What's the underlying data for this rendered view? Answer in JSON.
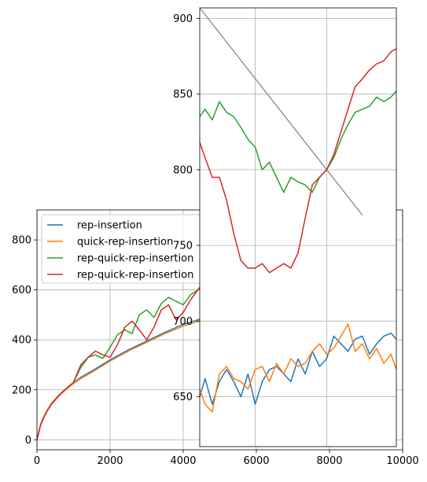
{
  "chart_data": [
    {
      "id": "main",
      "type": "line",
      "title": "",
      "xlabel": "",
      "ylabel": "",
      "xlim": [
        0,
        10000
      ],
      "ylim": [
        -40,
        920
      ],
      "xticks": [
        0,
        2000,
        4000,
        6000,
        8000,
        10000
      ],
      "xtick_labels": [
        "0",
        "2000",
        "4000",
        "6000",
        "8000",
        "10000"
      ],
      "yticks": [
        0,
        200,
        400,
        600,
        800
      ],
      "ytick_labels": [
        "0",
        "200",
        "400",
        "600",
        "800"
      ],
      "grid": true,
      "legend": "upper left",
      "series": [
        {
          "name": "rep-insertion",
          "color": "#1f77b4",
          "x": [
            0,
            100,
            200,
            300,
            400,
            600,
            800,
            1000,
            1200,
            1500,
            2000,
            2500,
            3000,
            3500,
            4000,
            4500
          ],
          "y": [
            0,
            60,
            95,
            122,
            145,
            178,
            205,
            228,
            250,
            275,
            320,
            360,
            395,
            430,
            462,
            485
          ]
        },
        {
          "name": "quick-rep-insertion",
          "color": "#ff7f0e",
          "x": [
            0,
            100,
            200,
            300,
            400,
            600,
            800,
            1000,
            1200,
            1500,
            2000,
            2500,
            3000,
            3500,
            4000,
            4500
          ],
          "y": [
            0,
            58,
            92,
            120,
            142,
            175,
            202,
            225,
            245,
            270,
            315,
            355,
            390,
            425,
            455,
            478
          ]
        },
        {
          "name": "rep-quick-rep-insertion",
          "color": "#2ca02c",
          "x": [
            0,
            100,
            200,
            300,
            400,
            600,
            800,
            1000,
            1200,
            1400,
            1600,
            1800,
            2000,
            2200,
            2400,
            2600,
            2800,
            3000,
            3200,
            3400,
            3600,
            3800,
            4000,
            4200,
            4500
          ],
          "y": [
            0,
            60,
            95,
            122,
            145,
            178,
            205,
            230,
            290,
            330,
            340,
            325,
            370,
            420,
            440,
            425,
            500,
            520,
            490,
            545,
            570,
            555,
            540,
            580,
            610
          ]
        },
        {
          "name": "rep-quick-rep-insertion",
          "color": "#d62728",
          "x": [
            0,
            100,
            200,
            300,
            400,
            600,
            800,
            1000,
            1200,
            1400,
            1600,
            1800,
            2000,
            2200,
            2400,
            2600,
            2800,
            3000,
            3200,
            3400,
            3600,
            3800,
            4000,
            4200,
            4500
          ],
          "y": [
            0,
            60,
            95,
            122,
            145,
            178,
            205,
            230,
            300,
            330,
            355,
            340,
            330,
            380,
            450,
            475,
            440,
            400,
            450,
            520,
            540,
            480,
            510,
            560,
            620
          ]
        }
      ]
    },
    {
      "id": "inset",
      "type": "line",
      "title": "",
      "xlabel": "",
      "ylabel": "",
      "xlim": [
        4450,
        9950
      ],
      "ylim": [
        617,
        907
      ],
      "xticks": [
        4000,
        6000,
        8000,
        10000
      ],
      "xtick_labels": [
        "4000",
        "6000",
        "8000",
        "10000"
      ],
      "yticks": [
        650,
        700,
        750,
        800,
        850,
        900
      ],
      "ytick_labels": [
        "650",
        "700",
        "750",
        "800",
        "850",
        "900"
      ],
      "grid": true,
      "reference_line": {
        "color": "#808080",
        "x": [
          4450,
          9000
        ],
        "y": [
          907,
          770
        ]
      },
      "series": [
        {
          "name": "rep-insertion",
          "color": "#1f77b4",
          "x": [
            4450,
            4600,
            4800,
            5000,
            5200,
            5400,
            5600,
            5800,
            6000,
            6200,
            6400,
            6600,
            6800,
            7000,
            7200,
            7400,
            7600,
            7800,
            8000,
            8200,
            8400,
            8600,
            8800,
            9000,
            9200,
            9400,
            9600,
            9800,
            9950
          ],
          "y": [
            650,
            662,
            645,
            660,
            668,
            660,
            650,
            665,
            645,
            660,
            668,
            670,
            665,
            660,
            675,
            665,
            680,
            670,
            675,
            690,
            685,
            680,
            688,
            690,
            678,
            685,
            690,
            692,
            688
          ]
        },
        {
          "name": "quick-rep-insertion",
          "color": "#ff7f0e",
          "x": [
            4450,
            4600,
            4800,
            5000,
            5200,
            5400,
            5600,
            5800,
            6000,
            6200,
            6400,
            6600,
            6800,
            7000,
            7200,
            7400,
            7600,
            7800,
            8000,
            8200,
            8400,
            8600,
            8800,
            9000,
            9200,
            9400,
            9600,
            9800,
            9950
          ],
          "y": [
            655,
            645,
            640,
            665,
            670,
            662,
            660,
            655,
            668,
            670,
            660,
            672,
            665,
            675,
            670,
            672,
            680,
            685,
            678,
            682,
            690,
            698,
            680,
            685,
            675,
            682,
            672,
            678,
            668
          ]
        },
        {
          "name": "rep-quick-rep-insertion",
          "color": "#2ca02c",
          "x": [
            4450,
            4600,
            4800,
            5000,
            5200,
            5400,
            5600,
            5800,
            6000,
            6200,
            6400,
            6600,
            6800,
            7000,
            7200,
            7400,
            7600,
            7800,
            8000,
            8200,
            8400,
            8600,
            8800,
            9000,
            9200,
            9400,
            9600,
            9800,
            9950
          ],
          "y": [
            835,
            840,
            833,
            845,
            838,
            835,
            828,
            820,
            815,
            800,
            805,
            795,
            785,
            795,
            792,
            790,
            785,
            795,
            800,
            808,
            820,
            830,
            838,
            840,
            842,
            848,
            845,
            848,
            852
          ]
        },
        {
          "name": "rep-quick-rep-insertion",
          "color": "#d62728",
          "x": [
            4450,
            4600,
            4800,
            5000,
            5200,
            5400,
            5600,
            5800,
            6000,
            6200,
            6400,
            6600,
            6800,
            7000,
            7200,
            7400,
            7600,
            7800,
            8000,
            8200,
            8400,
            8600,
            8800,
            9000,
            9200,
            9400,
            9600,
            9800,
            9950
          ],
          "y": [
            818,
            808,
            795,
            795,
            780,
            758,
            740,
            735,
            735,
            738,
            732,
            735,
            738,
            735,
            745,
            768,
            790,
            795,
            800,
            810,
            825,
            840,
            855,
            860,
            866,
            870,
            872,
            878,
            880
          ]
        }
      ]
    }
  ]
}
